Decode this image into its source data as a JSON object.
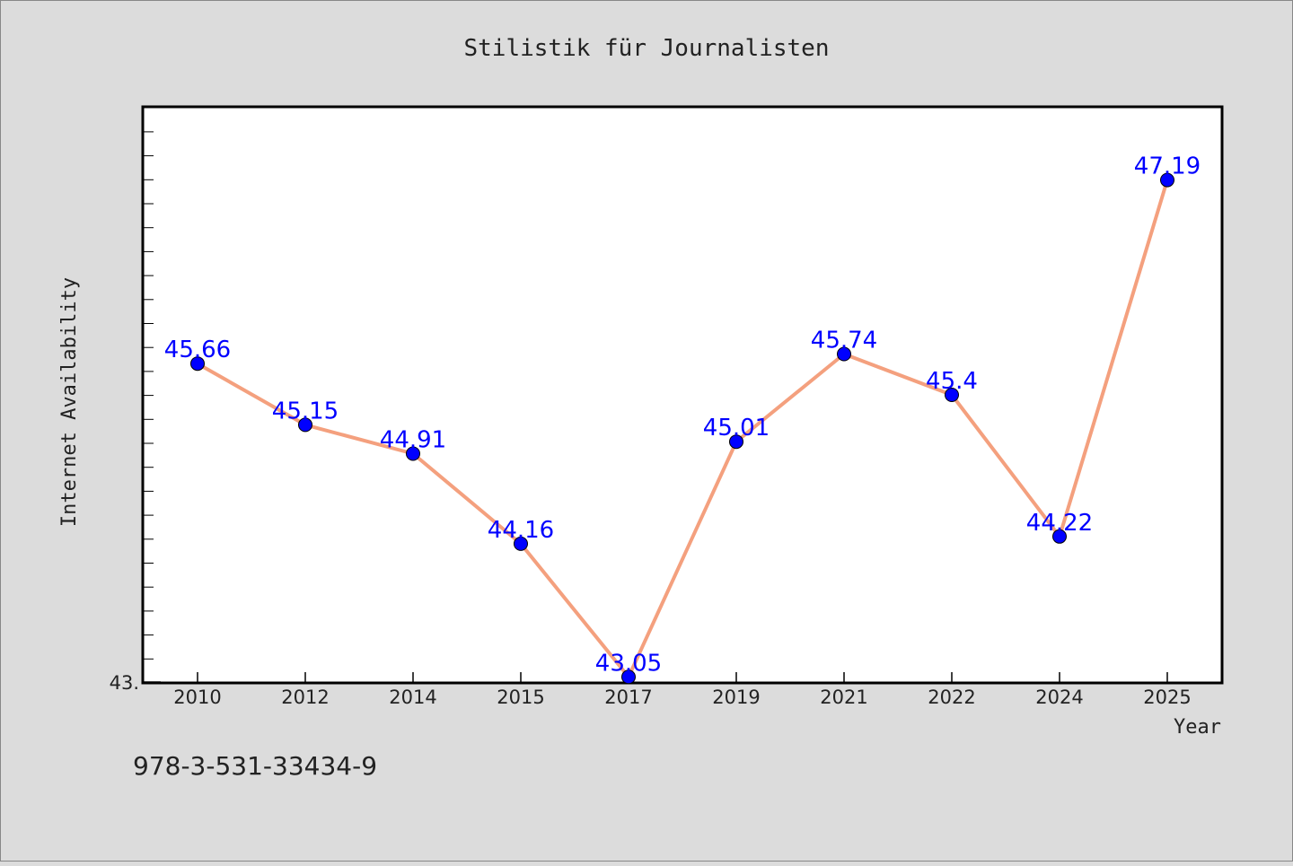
{
  "chart_data": {
    "type": "line",
    "title": "Stilistik für Journalisten",
    "xlabel": "Year",
    "ylabel": "Internet Availability",
    "categories": [
      "2010",
      "2012",
      "2014",
      "2015",
      "2017",
      "2019",
      "2021",
      "2022",
      "2024",
      "2025"
    ],
    "series": [
      {
        "values": [
          45.66,
          45.15,
          44.91,
          44.16,
          43.05,
          45.01,
          45.74,
          45.4,
          44.22,
          47.19
        ]
      }
    ],
    "data_labels": [
      "45.66",
      "45.15",
      "44.91",
      "44.16",
      "43.05",
      "45.01",
      "45.74",
      "45.4",
      "44.22",
      "47.19"
    ],
    "ylim": [
      43.0,
      47.8
    ],
    "y_tick_label": "43.",
    "grid": false,
    "legend": "none",
    "colors": {
      "line": "#f4a07e",
      "marker": "#0000ff",
      "label": "#0000ff",
      "background": "#dcdcdc",
      "plot": "#ffffff"
    }
  },
  "footer_text": "978-3-531-33434-9"
}
